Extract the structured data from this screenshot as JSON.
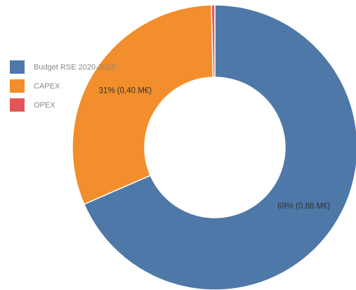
{
  "chart_data": {
    "type": "pie",
    "variant": "donut",
    "title": "",
    "legend_title": "Budget RSE 2020-2023",
    "legend_position": "left",
    "slices": [
      {
        "name": "CAPEX",
        "value": 0.88,
        "percent": 69,
        "data_label": "69% (0,88 M€)",
        "color": "#4e78a8"
      },
      {
        "name": "CAPEX",
        "value": 0.4,
        "percent": 31,
        "data_label": "31% (0,40 M€)",
        "color": "#f28e2b"
      },
      {
        "name": "OPEX",
        "value": 0.005,
        "percent": 0,
        "data_label": "",
        "color": "#e15759"
      }
    ]
  },
  "legend": {
    "items": [
      {
        "label": "Budget RSE 2020-2023",
        "color": "#4e78a8"
      },
      {
        "label": "CAPEX",
        "color": "#f28e2b"
      },
      {
        "label": "OPEX",
        "color": "#e15759"
      }
    ]
  }
}
